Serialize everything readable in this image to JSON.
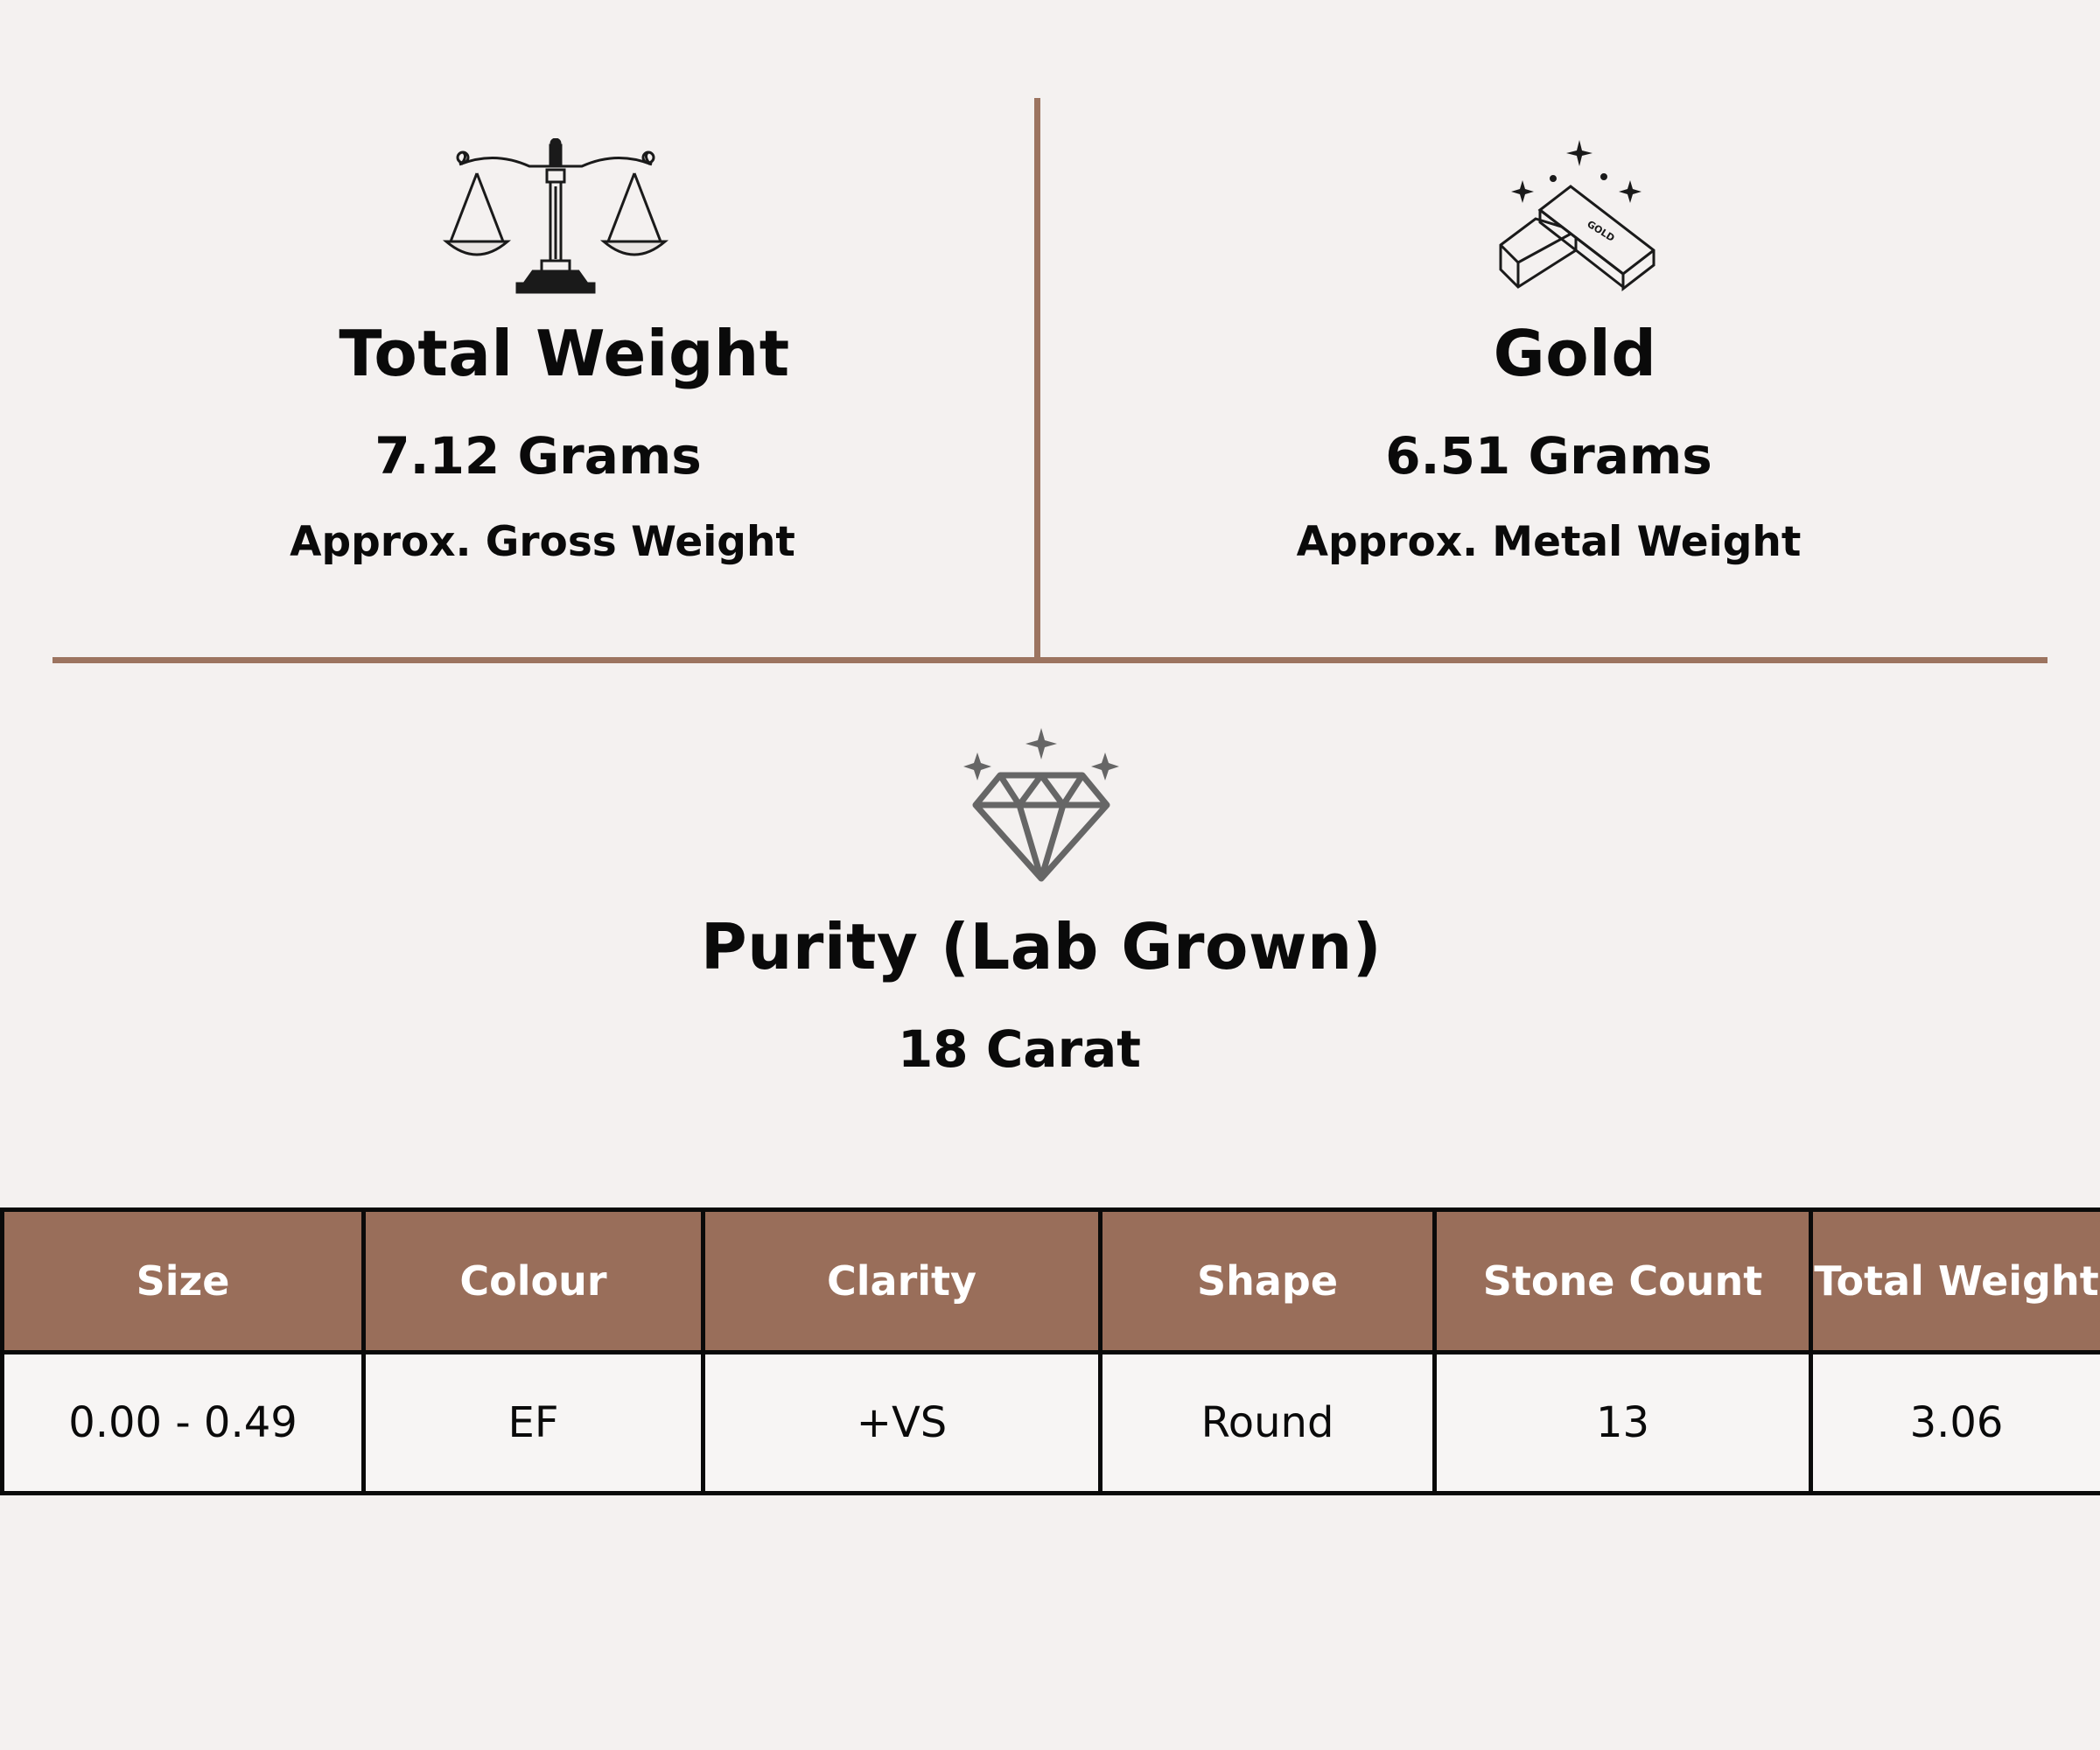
{
  "colors": {
    "background": "#f4f1f0",
    "divider": "#9c7460",
    "table_header_bg": "#996e5a",
    "table_border": "#0a0a0a",
    "text": "#0a0a0a"
  },
  "total_weight": {
    "icon": "balance-scale-icon",
    "title": "Total Weight",
    "value": "7.12 Grams",
    "note": "Approx. Gross Weight"
  },
  "gold": {
    "icon": "gold-bars-icon",
    "icon_label": "GOLD",
    "title": "Gold",
    "value": "6.51 Grams",
    "note": "Approx. Metal Weight"
  },
  "purity": {
    "icon": "diamond-sparkle-icon",
    "title": "Purity (Lab Grown)",
    "value": "18 Carat"
  },
  "table": {
    "headers": [
      "Size",
      "Colour",
      "Clarity",
      "Shape",
      "Stone Count",
      "Total Weight"
    ],
    "rows": [
      [
        "0.00 - 0.49",
        "EF",
        "+VS",
        "Round",
        "13",
        "3.06"
      ]
    ]
  }
}
